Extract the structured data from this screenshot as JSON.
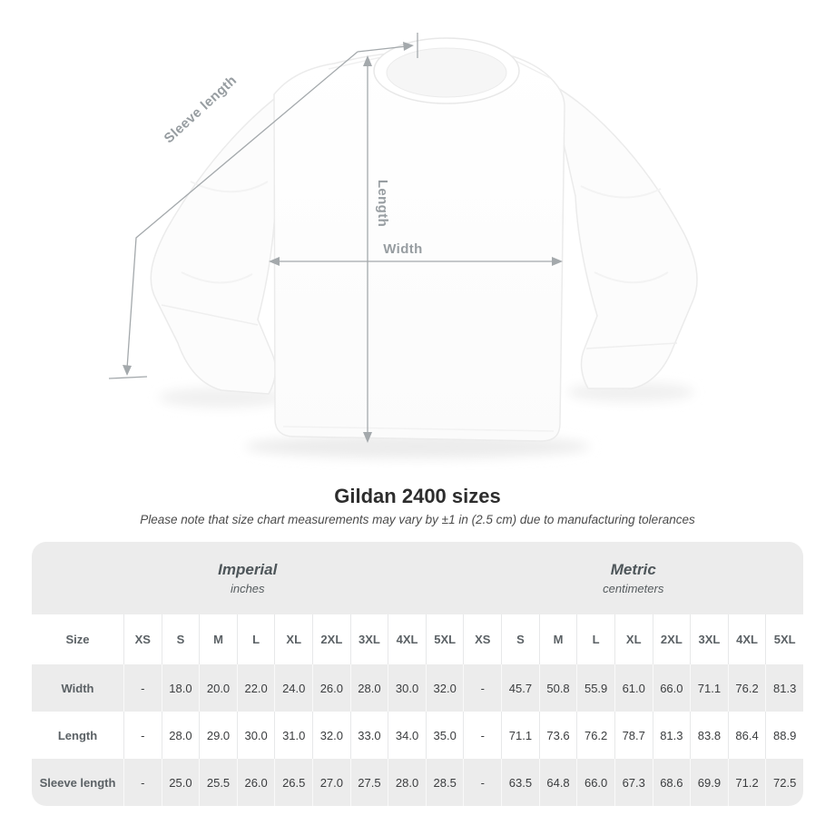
{
  "diagram": {
    "sleeve_length_label": "Sleeve length",
    "length_label": "Length",
    "width_label": "Width"
  },
  "chart_data": {
    "type": "table",
    "title": "Gildan 2400 sizes",
    "subtitle": "Please note that size chart measurements may vary by ±1 in (2.5 cm) due to manufacturing tolerances",
    "unit_groups": [
      {
        "label": "Imperial",
        "sublabel": "inches"
      },
      {
        "label": "Metric",
        "sublabel": "centimeters"
      }
    ],
    "size_header": "Size",
    "sizes": [
      "XS",
      "S",
      "M",
      "L",
      "XL",
      "2XL",
      "3XL",
      "4XL",
      "5XL"
    ],
    "rows": [
      {
        "label": "Width",
        "imperial": [
          "-",
          "18.0",
          "20.0",
          "22.0",
          "24.0",
          "26.0",
          "28.0",
          "30.0",
          "32.0"
        ],
        "metric": [
          "-",
          "45.7",
          "50.8",
          "55.9",
          "61.0",
          "66.0",
          "71.1",
          "76.2",
          "81.3"
        ]
      },
      {
        "label": "Length",
        "imperial": [
          "-",
          "28.0",
          "29.0",
          "30.0",
          "31.0",
          "32.0",
          "33.0",
          "34.0",
          "35.0"
        ],
        "metric": [
          "-",
          "71.1",
          "73.6",
          "76.2",
          "78.7",
          "81.3",
          "83.8",
          "86.4",
          "88.9"
        ]
      },
      {
        "label": "Sleeve length",
        "imperial": [
          "-",
          "25.0",
          "25.5",
          "26.0",
          "26.5",
          "27.0",
          "27.5",
          "28.0",
          "28.5"
        ],
        "metric": [
          "-",
          "63.5",
          "64.8",
          "66.0",
          "67.3",
          "68.6",
          "69.9",
          "71.2",
          "72.5"
        ]
      }
    ]
  },
  "colors": {
    "band_gray": "#ececec",
    "dimension_gray": "#a4a9ac",
    "value_text": "#3b3d3f",
    "header_text": "#5b6165"
  }
}
